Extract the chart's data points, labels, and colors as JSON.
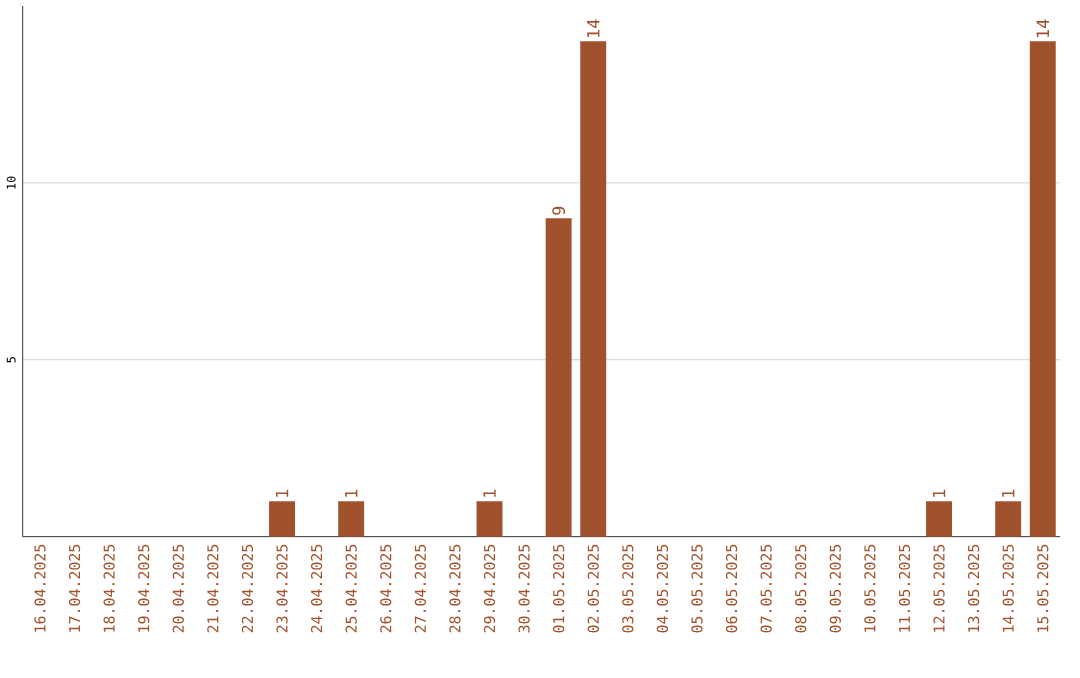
{
  "chart_data": {
    "type": "bar",
    "categories": [
      "16.04.2025",
      "17.04.2025",
      "18.04.2025",
      "19.04.2025",
      "20.04.2025",
      "21.04.2025",
      "22.04.2025",
      "23.04.2025",
      "24.04.2025",
      "25.04.2025",
      "26.04.2025",
      "27.04.2025",
      "28.04.2025",
      "29.04.2025",
      "30.04.2025",
      "01.05.2025",
      "02.05.2025",
      "03.05.2025",
      "04.05.2025",
      "05.05.2025",
      "06.05.2025",
      "07.05.2025",
      "08.05.2025",
      "09.05.2025",
      "10.05.2025",
      "11.05.2025",
      "12.05.2025",
      "13.05.2025",
      "14.05.2025",
      "15.05.2025"
    ],
    "values": [
      0,
      0,
      0,
      0,
      0,
      0,
      0,
      1,
      0,
      1,
      0,
      0,
      0,
      1,
      0,
      9,
      14,
      0,
      0,
      0,
      0,
      0,
      0,
      0,
      0,
      0,
      1,
      0,
      1,
      14
    ],
    "value_labels": [
      null,
      null,
      null,
      null,
      null,
      null,
      null,
      "1",
      null,
      "1",
      null,
      null,
      null,
      "1",
      null,
      "9",
      "14",
      null,
      null,
      null,
      null,
      null,
      null,
      null,
      null,
      null,
      "1",
      null,
      "1",
      "14"
    ],
    "color": "#a0522d",
    "ylim": [
      0,
      15
    ],
    "yticks": [
      5,
      10
    ],
    "grid": "y"
  }
}
